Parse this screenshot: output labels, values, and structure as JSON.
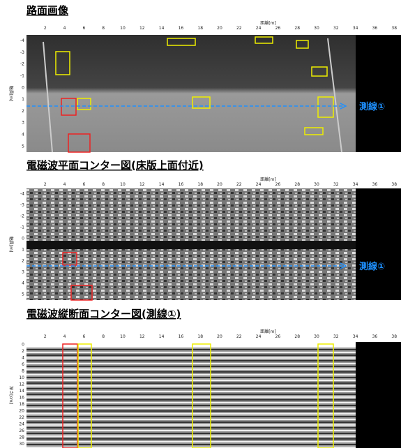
{
  "panels": [
    {
      "title": "路面画像",
      "x_label": "距離[m]",
      "y_label": "幅員[m]",
      "x_ticks": [
        2,
        4,
        6,
        8,
        10,
        12,
        14,
        16,
        18,
        20,
        22,
        24,
        26,
        28,
        30,
        32,
        34,
        36,
        38
      ],
      "y_ticks": [
        -4,
        -3,
        -2,
        -1,
        0,
        1,
        2,
        3,
        4,
        5
      ],
      "line_label": "測線①"
    },
    {
      "title": "電磁波平面コンター図(床版上面付近)",
      "x_label": "距離[m]",
      "y_label": "幅員[m]",
      "x_ticks": [
        2,
        4,
        6,
        8,
        10,
        12,
        14,
        16,
        18,
        20,
        22,
        24,
        26,
        28,
        30,
        32,
        34,
        36,
        38
      ],
      "y_ticks": [
        -4,
        -3,
        -2,
        -1,
        0,
        1,
        2,
        3,
        4,
        5
      ],
      "line_label": "測線①"
    },
    {
      "title": "電磁波縦断面コンター図(測線①)",
      "x_label": "距離[m]",
      "y_label": "深さ[cm]",
      "x_ticks": [
        2,
        4,
        6,
        8,
        10,
        12,
        14,
        16,
        18,
        20,
        22,
        24,
        26,
        28,
        30,
        32,
        34,
        36,
        38
      ],
      "y_ticks": [
        0,
        2,
        4,
        6,
        8,
        10,
        12,
        14,
        16,
        18,
        20,
        22,
        24,
        26,
        28,
        30
      ]
    }
  ]
}
